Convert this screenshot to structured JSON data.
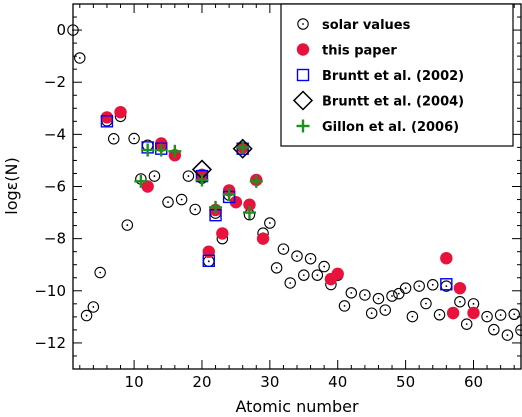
{
  "chart_data": {
    "type": "scatter",
    "xlabel": "Atomic number",
    "ylabel": "logε(N)",
    "xlim": [
      1,
      67
    ],
    "ylim": [
      -13,
      1
    ],
    "x_ticks": [
      10,
      20,
      30,
      40,
      50,
      60
    ],
    "y_ticks": [
      0,
      -2,
      -4,
      -6,
      -8,
      -10,
      -12
    ],
    "legend_position": "top-right",
    "series": [
      {
        "name": "solar values",
        "marker": "circle-dot",
        "color": "#000000",
        "points": [
          [
            1,
            0.0
          ],
          [
            2,
            -1.07
          ],
          [
            3,
            -10.95
          ],
          [
            4,
            -10.62
          ],
          [
            5,
            -9.3
          ],
          [
            6,
            -3.48
          ],
          [
            7,
            -4.17
          ],
          [
            8,
            -3.31
          ],
          [
            9,
            -7.48
          ],
          [
            10,
            -4.16
          ],
          [
            11,
            -5.71
          ],
          [
            12,
            -4.42
          ],
          [
            13,
            -5.6
          ],
          [
            14,
            -4.45
          ],
          [
            15,
            -6.6
          ],
          [
            16,
            -4.79
          ],
          [
            17,
            -6.5
          ],
          [
            18,
            -5.6
          ],
          [
            19,
            -6.88
          ],
          [
            20,
            -5.68
          ],
          [
            21,
            -8.87
          ],
          [
            22,
            -7.02
          ],
          [
            23,
            -8.0
          ],
          [
            24,
            -6.33
          ],
          [
            25,
            -6.61
          ],
          [
            26,
            -4.5
          ],
          [
            27,
            -7.08
          ],
          [
            28,
            -5.75
          ],
          [
            29,
            -7.79
          ],
          [
            30,
            -7.4
          ],
          [
            31,
            -9.12
          ],
          [
            32,
            -8.4
          ],
          [
            33,
            -9.7
          ],
          [
            34,
            -8.67
          ],
          [
            35,
            -9.4
          ],
          [
            36,
            -8.77
          ],
          [
            37,
            -9.4
          ],
          [
            38,
            -9.07
          ],
          [
            39,
            -9.76
          ],
          [
            40,
            -9.4
          ],
          [
            41,
            -10.58
          ],
          [
            42,
            -10.08
          ],
          [
            44,
            -10.16
          ],
          [
            45,
            -10.86
          ],
          [
            46,
            -10.3
          ],
          [
            47,
            -10.74
          ],
          [
            48,
            -10.2
          ],
          [
            49,
            -10.11
          ],
          [
            50,
            -9.9
          ],
          [
            51,
            -10.99
          ],
          [
            52,
            -9.82
          ],
          [
            53,
            -10.49
          ],
          [
            54,
            -9.77
          ],
          [
            55,
            -10.92
          ],
          [
            56,
            -9.82
          ],
          [
            57,
            -10.87
          ],
          [
            58,
            -10.42
          ],
          [
            59,
            -11.28
          ],
          [
            60,
            -10.5
          ],
          [
            62,
            -10.99
          ],
          [
            63,
            -11.49
          ],
          [
            64,
            -10.93
          ],
          [
            65,
            -11.7
          ],
          [
            66,
            -10.9
          ],
          [
            67,
            -11.51
          ]
        ]
      },
      {
        "name": "this paper",
        "marker": "filled-circle",
        "color": "#e8123c",
        "points": [
          [
            6,
            -3.35
          ],
          [
            8,
            -3.15
          ],
          [
            12,
            -6.0
          ],
          [
            14,
            -4.35
          ],
          [
            16,
            -4.8
          ],
          [
            20,
            -5.55
          ],
          [
            21,
            -8.5
          ],
          [
            22,
            -6.9
          ],
          [
            23,
            -7.8
          ],
          [
            24,
            -6.15
          ],
          [
            25,
            -6.6
          ],
          [
            26,
            -4.5
          ],
          [
            27,
            -6.7
          ],
          [
            28,
            -5.75
          ],
          [
            29,
            -8.0
          ],
          [
            39,
            -9.55
          ],
          [
            40,
            -9.35
          ],
          [
            56,
            -8.75
          ],
          [
            57,
            -10.85
          ],
          [
            58,
            -9.9
          ],
          [
            60,
            -10.85
          ]
        ]
      },
      {
        "name": "Bruntt et al. (2002)",
        "marker": "open-square",
        "color": "#0000ff",
        "points": [
          [
            6,
            -3.5
          ],
          [
            12,
            -4.5
          ],
          [
            14,
            -4.55
          ],
          [
            20,
            -5.6
          ],
          [
            21,
            -8.85
          ],
          [
            22,
            -7.1
          ],
          [
            24,
            -6.4
          ],
          [
            26,
            -4.55
          ],
          [
            56,
            -9.75
          ]
        ]
      },
      {
        "name": "Bruntt et al. (2004)",
        "marker": "open-diamond",
        "color": "#000000",
        "points": [
          [
            20,
            -5.35
          ],
          [
            26,
            -4.55
          ]
        ]
      },
      {
        "name": "Gillon et al. (2006)",
        "marker": "plus",
        "color": "#1f8f1f",
        "points": [
          [
            11,
            -5.8
          ],
          [
            12,
            -4.6
          ],
          [
            14,
            -4.6
          ],
          [
            16,
            -4.65
          ],
          [
            20,
            -5.75
          ],
          [
            22,
            -6.8
          ],
          [
            24,
            -6.3
          ],
          [
            26,
            -4.5
          ],
          [
            27,
            -7.0
          ],
          [
            28,
            -5.8
          ]
        ]
      }
    ]
  }
}
